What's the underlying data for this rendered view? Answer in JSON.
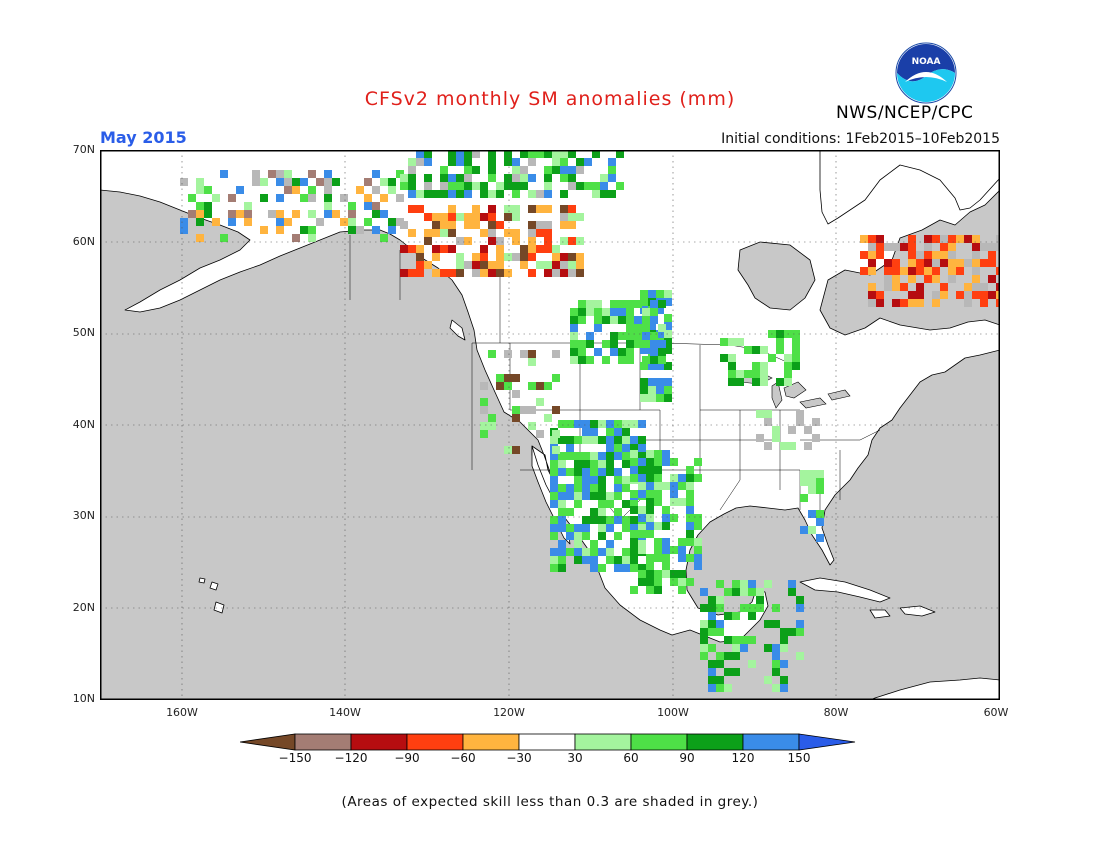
{
  "header": {
    "title": "CFSv2 monthly SM anomalies (mm)",
    "title_color": "#e0201b",
    "month": "May 2015",
    "month_color": "#2a5de8",
    "initial_conditions": "Initial conditions: 1Feb2015–10Feb2015",
    "agency": "NWS/NCEP/CPC",
    "logo_text": "NOAA"
  },
  "map": {
    "region": "North America",
    "ocean_color": "#c8c8c8",
    "land_color": "#ffffff",
    "lat_labels": [
      "70N",
      "60N",
      "50N",
      "40N",
      "30N",
      "20N",
      "10N"
    ],
    "lon_labels": [
      "160W",
      "140W",
      "120W",
      "100W",
      "80W",
      "60W"
    ],
    "lat_range": [
      10,
      70
    ],
    "lon_range": [
      -170,
      -60
    ]
  },
  "legend": {
    "bins": [
      {
        "color": "#754827"
      },
      {
        "color": "#a47d74"
      },
      {
        "color": "#b60d10"
      },
      {
        "color": "#ff3f10"
      },
      {
        "color": "#ffb43f"
      },
      {
        "color": "#ffffff"
      },
      {
        "color": "#a4f49e"
      },
      {
        "color": "#4ee047"
      },
      {
        "color": "#0ca019"
      },
      {
        "color": "#3a8ce8"
      },
      {
        "color": "#2a5ce8"
      }
    ],
    "ticks": [
      "−150",
      "−120",
      "−90",
      "−60",
      "−30",
      "30",
      "60",
      "90",
      "120",
      "150"
    ]
  },
  "footnote": "(Areas of expected skill less than 0.3 are shaded in grey.)"
}
